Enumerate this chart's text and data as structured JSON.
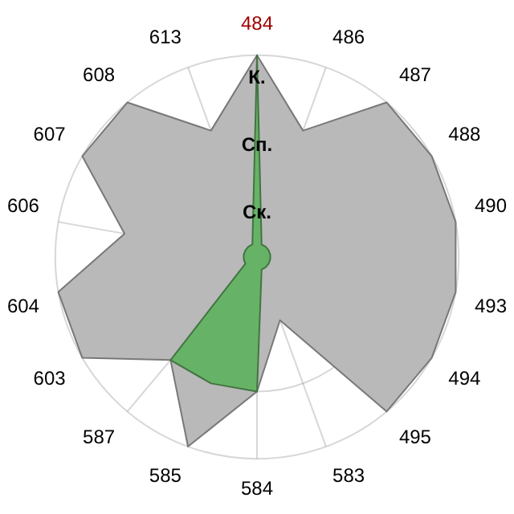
{
  "chart_data": {
    "type": "radar",
    "categories": [
      "484",
      "486",
      "487",
      "488",
      "490",
      "493",
      "494",
      "495",
      "583",
      "584",
      "585",
      "587",
      "603",
      "604",
      "606",
      "607",
      "608",
      "613"
    ],
    "ylim": [
      0,
      3
    ],
    "yticks": [
      {
        "value": 1,
        "label": "Ск."
      },
      {
        "value": 2,
        "label": "Сп."
      },
      {
        "value": 3,
        "label": "К."
      }
    ],
    "grid": true,
    "legend": false,
    "marker": "none",
    "series": [
      {
        "color": "#b9b9b9",
        "values": [
          3,
          2,
          3,
          3,
          3,
          3,
          3,
          3,
          1,
          2,
          3,
          2,
          3,
          3,
          2,
          3,
          3,
          2
        ]
      },
      {
        "color": "#66b266",
        "values": [
          3,
          0.2,
          0.2,
          0.2,
          0.2,
          0.2,
          0.2,
          0.2,
          0.2,
          2,
          2,
          2,
          0.2,
          0.2,
          0.2,
          0.2,
          0.2,
          0.2
        ]
      }
    ]
  }
}
